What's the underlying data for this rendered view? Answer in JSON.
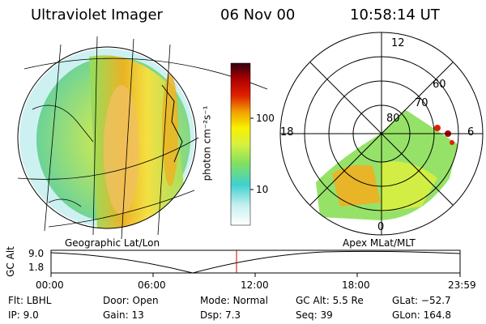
{
  "header": {
    "instrument": "Ultraviolet Imager",
    "date": "06 Nov 00",
    "time": "10:58:14 UT"
  },
  "colorbar": {
    "unit_label": "photon cm⁻²s⁻¹",
    "ticks": [
      "100",
      "10"
    ]
  },
  "left_map": {
    "label": "Geographic Lat/Lon"
  },
  "right_map": {
    "label": "Apex MLat/MLT",
    "mlt_labels": [
      "12",
      "18",
      "6",
      "0"
    ],
    "lat_labels": [
      "80",
      "70",
      "60"
    ]
  },
  "altitude_plot": {
    "ylabel": "GC Alt",
    "yticks": [
      "9.0",
      "1.8"
    ],
    "xticks": [
      "00:00",
      "06:00",
      "12:00",
      "18:00",
      "23:59"
    ]
  },
  "status": {
    "col1": [
      {
        "key": "Flt:",
        "val": "LBHL"
      },
      {
        "key": "IP:",
        "val": "9.0"
      }
    ],
    "col2": [
      {
        "key": "Door:",
        "val": "Open"
      },
      {
        "key": "Gain:",
        "val": "13"
      }
    ],
    "col3": [
      {
        "key": "Mode:",
        "val": "Normal"
      },
      {
        "key": "Dsp:",
        "val": "7.3"
      }
    ],
    "col4": [
      {
        "key": "GC Alt:",
        "val": "5.5 Re"
      },
      {
        "key": "Seq:",
        "val": "39"
      }
    ],
    "col5": [
      {
        "key": "GLat:",
        "val": "−52.7"
      },
      {
        "key": "GLon:",
        "val": "164.8"
      }
    ]
  },
  "colors": {
    "colorbar": [
      "#ffffff",
      "#c8f0f0",
      "#40d0d0",
      "#80e060",
      "#d8f040",
      "#f8f000",
      "#f0a000",
      "#e02000",
      "#b00000",
      "#300010"
    ],
    "cursor": "#d00000"
  }
}
